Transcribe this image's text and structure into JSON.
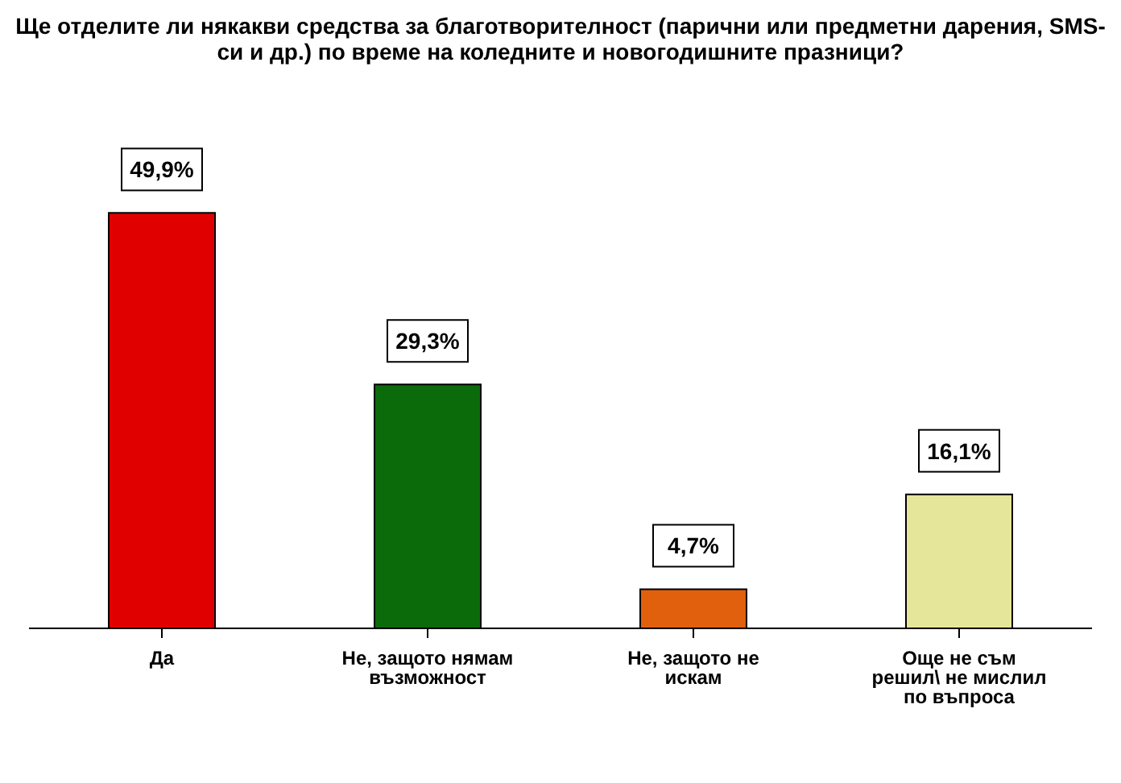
{
  "chart_data": {
    "type": "bar",
    "title": "Ще отделите ли някакви средства за благотворителност (парични или предметни дарения, SMS-си и др.) по време на коледните и новогодишните празници?",
    "categories": [
      "Да",
      "Не, защото нямам възможност",
      "Не, защото не искам",
      "Още не съм решил\\ не мислил по въпроса"
    ],
    "values": [
      49.9,
      29.3,
      4.7,
      16.1
    ],
    "colors": [
      "#e00000",
      "#0b6b0b",
      "#e0600e",
      "#e6e69a"
    ],
    "value_labels": [
      "49,9%",
      "29,3%",
      "4,7%",
      "16,1%"
    ]
  }
}
